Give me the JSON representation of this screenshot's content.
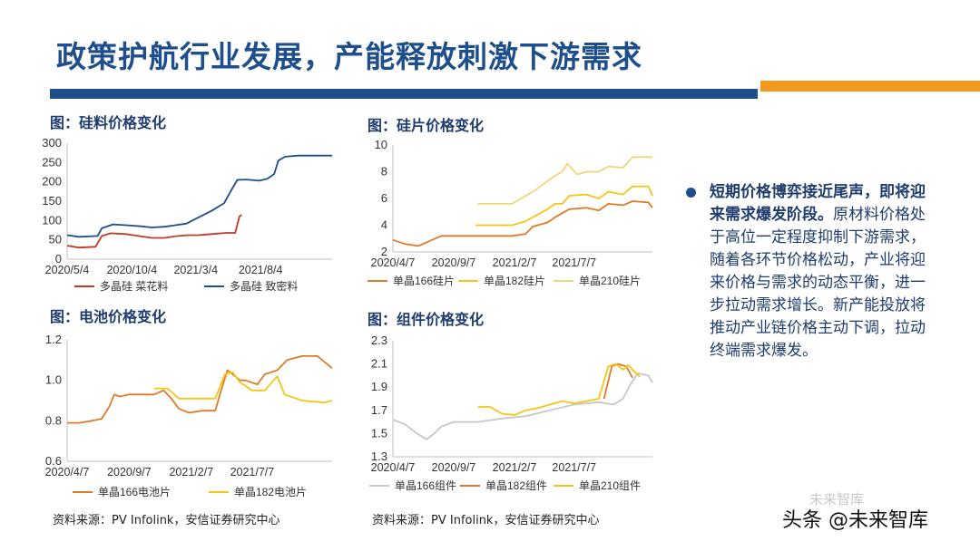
{
  "title": "政策护航行业发展，产能释放刺激下游需求",
  "colors": {
    "brand_blue": "#1f4e8c",
    "accent_orange": "#f39a1e"
  },
  "charts": [
    {
      "title": "图：硅料价格变化",
      "source": "资料来源：PV Infolink，安信证券研究中心"
    },
    {
      "title": "图：硅片价格变化",
      "source": ""
    },
    {
      "title": "图：电池价格变化",
      "source": "资料来源：PV Infolink，安信证券研究中心"
    },
    {
      "title": "图：组件价格变化",
      "source": "资料来源：PV Infolink，安信证券研究中心"
    }
  ],
  "bullet": {
    "bold": "短期价格博弈接近尾声，即将迎来需求爆发阶段。",
    "text": "原材料价格处于高位一定程度抑制下游需求，随着各环节价格松动，产业将迎来价格与需求的动态平衡，进一步拉动需求增长。新产能投放将推动产业链价格主动下调，拉动终端需求爆发。"
  },
  "watermark": {
    "main": "头条 @未来智库",
    "faint": "未来智库"
  },
  "chart_data": [
    {
      "type": "line",
      "ylim": [
        0,
        300
      ],
      "yticks": [
        0,
        50,
        100,
        150,
        200,
        250,
        300
      ],
      "xrange": [
        "2020-05-04",
        "2022-01-20"
      ],
      "xticks": [
        "2020/5/4",
        "2020/10/4",
        "2021/3/4",
        "2021/8/4"
      ],
      "legend_position": "bottom",
      "series": [
        {
          "name": "多晶硅 菜花料",
          "color": "#c0392b",
          "points": [
            [
              "2020-05-04",
              35
            ],
            [
              "2020-06-01",
              30
            ],
            [
              "2020-07-10",
              32
            ],
            [
              "2020-07-25",
              60
            ],
            [
              "2020-08-15",
              67
            ],
            [
              "2020-09-20",
              65
            ],
            [
              "2020-10-20",
              60
            ],
            [
              "2020-11-20",
              55
            ],
            [
              "2020-12-20",
              55
            ],
            [
              "2021-01-20",
              60
            ],
            [
              "2021-02-15",
              62
            ],
            [
              "2021-03-10",
              62
            ],
            [
              "2021-04-10",
              65
            ],
            [
              "2021-05-15",
              68
            ],
            [
              "2021-06-05",
              68
            ],
            [
              "2021-06-15",
              110
            ],
            [
              "2021-06-20",
              115
            ]
          ]
        },
        {
          "name": "多晶硅 致密料",
          "color": "#1f4e8c",
          "points": [
            [
              "2020-05-04",
              62
            ],
            [
              "2020-06-01",
              58
            ],
            [
              "2020-07-15",
              60
            ],
            [
              "2020-07-25",
              80
            ],
            [
              "2020-08-20",
              90
            ],
            [
              "2020-09-20",
              88
            ],
            [
              "2020-10-25",
              85
            ],
            [
              "2020-11-20",
              82
            ],
            [
              "2020-12-20",
              84
            ],
            [
              "2021-01-15",
              88
            ],
            [
              "2021-02-10",
              92
            ],
            [
              "2021-03-10",
              108
            ],
            [
              "2021-04-10",
              125
            ],
            [
              "2021-05-10",
              145
            ],
            [
              "2021-05-25",
              175
            ],
            [
              "2021-06-10",
              205
            ],
            [
              "2021-07-01",
              206
            ],
            [
              "2021-08-01",
              203
            ],
            [
              "2021-08-20",
              208
            ],
            [
              "2021-09-05",
              220
            ],
            [
              "2021-09-15",
              255
            ],
            [
              "2021-10-01",
              265
            ],
            [
              "2021-11-01",
              268
            ],
            [
              "2022-01-20",
              268
            ]
          ]
        }
      ]
    },
    {
      "type": "line",
      "ylim": [
        2,
        10
      ],
      "yticks": [
        2,
        4,
        6,
        8,
        10
      ],
      "xrange": [
        "2020-04-07",
        "2022-01-20"
      ],
      "xticks": [
        "2020/4/7",
        "2020/9/7",
        "2021/2/7",
        "2021/7/7"
      ],
      "legend_position": "bottom",
      "series": [
        {
          "name": "单晶166硅片",
          "color": "#e07a27",
          "points": [
            [
              "2020-04-07",
              2.9
            ],
            [
              "2020-05-07",
              2.6
            ],
            [
              "2020-06-10",
              2.45
            ],
            [
              "2020-07-15",
              2.9
            ],
            [
              "2020-08-07",
              3.2
            ],
            [
              "2020-11-07",
              3.2
            ],
            [
              "2021-02-01",
              3.2
            ],
            [
              "2021-03-07",
              3.35
            ],
            [
              "2021-03-25",
              3.9
            ],
            [
              "2021-05-01",
              4.2
            ],
            [
              "2021-05-20",
              4.6
            ],
            [
              "2021-06-07",
              4.9
            ],
            [
              "2021-06-25",
              5.2
            ],
            [
              "2021-08-07",
              5.3
            ],
            [
              "2021-09-07",
              5.1
            ],
            [
              "2021-10-01",
              5.6
            ],
            [
              "2021-11-07",
              5.5
            ],
            [
              "2021-12-01",
              5.8
            ],
            [
              "2022-01-10",
              5.7
            ],
            [
              "2022-01-20",
              5.3
            ]
          ]
        },
        {
          "name": "单晶182硅片",
          "color": "#f5c518",
          "points": [
            [
              "2020-11-01",
              4.0
            ],
            [
              "2021-02-01",
              4.0
            ],
            [
              "2021-03-07",
              4.3
            ],
            [
              "2021-03-25",
              4.6
            ],
            [
              "2021-05-01",
              5.2
            ],
            [
              "2021-05-20",
              5.6
            ],
            [
              "2021-06-07",
              5.6
            ],
            [
              "2021-06-25",
              6.2
            ],
            [
              "2021-08-07",
              6.3
            ],
            [
              "2021-09-07",
              6.0
            ],
            [
              "2021-10-01",
              6.5
            ],
            [
              "2021-11-07",
              6.3
            ],
            [
              "2021-12-01",
              6.9
            ],
            [
              "2022-01-10",
              6.9
            ],
            [
              "2022-01-20",
              6.2
            ]
          ]
        },
        {
          "name": "单晶210硅片",
          "color": "#f0d57a",
          "points": [
            [
              "2020-11-07",
              5.6
            ],
            [
              "2021-02-01",
              5.6
            ],
            [
              "2021-03-07",
              6.2
            ],
            [
              "2021-03-25",
              6.5
            ],
            [
              "2021-05-01",
              7.3
            ],
            [
              "2021-05-20",
              7.7
            ],
            [
              "2021-06-07",
              8.0
            ],
            [
              "2021-06-20",
              8.6
            ],
            [
              "2021-07-15",
              7.8
            ],
            [
              "2021-08-07",
              8.0
            ],
            [
              "2021-09-07",
              8.0
            ],
            [
              "2021-10-01",
              8.4
            ],
            [
              "2021-11-07",
              8.3
            ],
            [
              "2021-12-01",
              9.1
            ],
            [
              "2022-01-20",
              9.1
            ]
          ]
        }
      ]
    },
    {
      "type": "line",
      "ylim": [
        0.6,
        1.2
      ],
      "yticks": [
        0.6,
        0.8,
        1.0,
        1.2
      ],
      "xrange": [
        "2020-04-07",
        "2022-01-20"
      ],
      "xticks": [
        "2020/4/7",
        "2020/9/7",
        "2021/2/7",
        "2021/7/7"
      ],
      "legend_position": "bottom",
      "series": [
        {
          "name": "单晶166电池片",
          "color": "#e07a27",
          "points": [
            [
              "2020-04-07",
              0.79
            ],
            [
              "2020-05-07",
              0.79
            ],
            [
              "2020-06-07",
              0.8
            ],
            [
              "2020-07-01",
              0.81
            ],
            [
              "2020-07-20",
              0.87
            ],
            [
              "2020-08-01",
              0.93
            ],
            [
              "2020-08-15",
              0.92
            ],
            [
              "2020-09-07",
              0.93
            ],
            [
              "2020-11-07",
              0.93
            ],
            [
              "2020-12-01",
              0.95
            ],
            [
              "2020-12-20",
              0.91
            ],
            [
              "2021-01-07",
              0.86
            ],
            [
              "2021-02-01",
              0.84
            ],
            [
              "2021-03-07",
              0.85
            ],
            [
              "2021-04-07",
              0.85
            ],
            [
              "2021-04-20",
              0.94
            ],
            [
              "2021-05-07",
              1.05
            ],
            [
              "2021-05-20",
              1.03
            ],
            [
              "2021-06-07",
              1.0
            ],
            [
              "2021-06-20",
              1.0
            ],
            [
              "2021-07-20",
              0.98
            ],
            [
              "2021-08-07",
              1.03
            ],
            [
              "2021-09-07",
              1.05
            ],
            [
              "2021-10-01",
              1.1
            ],
            [
              "2021-11-07",
              1.12
            ],
            [
              "2021-12-15",
              1.12
            ],
            [
              "2022-01-20",
              1.06
            ]
          ]
        },
        {
          "name": "单晶182电池片",
          "color": "#f5c518",
          "points": [
            [
              "2020-11-07",
              0.96
            ],
            [
              "2020-12-10",
              0.96
            ],
            [
              "2021-01-07",
              0.91
            ],
            [
              "2021-02-07",
              0.91
            ],
            [
              "2021-04-07",
              0.91
            ],
            [
              "2021-05-01",
              1.03
            ],
            [
              "2021-05-20",
              1.04
            ],
            [
              "2021-06-07",
              0.99
            ],
            [
              "2021-07-07",
              0.95
            ],
            [
              "2021-08-07",
              0.95
            ],
            [
              "2021-09-07",
              1.02
            ],
            [
              "2021-09-25",
              0.93
            ],
            [
              "2021-11-07",
              0.9
            ],
            [
              "2022-01-01",
              0.89
            ],
            [
              "2022-01-20",
              0.9
            ]
          ]
        }
      ]
    },
    {
      "type": "line",
      "ylim": [
        1.3,
        2.3
      ],
      "yticks": [
        1.3,
        1.5,
        1.7,
        1.9,
        2.1,
        2.3
      ],
      "xrange": [
        "2020-04-07",
        "2022-01-20"
      ],
      "xticks": [
        "2020/4/7",
        "2020/9/7",
        "2021/2/7",
        "2021/7/7"
      ],
      "legend_position": "bottom",
      "series": [
        {
          "name": "单晶166组件",
          "color": "#c8c8c8",
          "points": [
            [
              "2020-04-07",
              1.62
            ],
            [
              "2020-05-07",
              1.58
            ],
            [
              "2020-06-07",
              1.5
            ],
            [
              "2020-07-01",
              1.45
            ],
            [
              "2020-07-20",
              1.5
            ],
            [
              "2020-08-07",
              1.56
            ],
            [
              "2020-09-07",
              1.6
            ],
            [
              "2020-11-07",
              1.6
            ],
            [
              "2021-01-07",
              1.63
            ],
            [
              "2021-03-07",
              1.65
            ],
            [
              "2021-05-07",
              1.7
            ],
            [
              "2021-07-07",
              1.75
            ],
            [
              "2021-09-07",
              1.77
            ],
            [
              "2021-10-15",
              1.75
            ],
            [
              "2021-11-07",
              1.8
            ],
            [
              "2021-11-25",
              1.92
            ],
            [
              "2021-12-15",
              2.02
            ],
            [
              "2022-01-10",
              2.0
            ],
            [
              "2022-01-20",
              1.94
            ]
          ]
        },
        {
          "name": "单晶182组件",
          "color": "#e07a27",
          "points": [
            [
              "2021-09-20",
              1.8
            ],
            [
              "2021-10-10",
              2.08
            ],
            [
              "2021-10-25",
              2.1
            ],
            [
              "2021-11-15",
              2.08
            ],
            [
              "2021-12-01",
              1.98
            ]
          ]
        },
        {
          "name": "单晶210组件",
          "color": "#f5c518",
          "points": [
            [
              "2020-11-07",
              1.73
            ],
            [
              "2020-12-07",
              1.73
            ],
            [
              "2021-01-07",
              1.67
            ],
            [
              "2021-02-07",
              1.66
            ],
            [
              "2021-03-07",
              1.7
            ],
            [
              "2021-04-07",
              1.72
            ],
            [
              "2021-05-07",
              1.75
            ],
            [
              "2021-06-07",
              1.78
            ],
            [
              "2021-07-07",
              1.76
            ],
            [
              "2021-08-07",
              1.78
            ],
            [
              "2021-09-07",
              1.8
            ],
            [
              "2021-10-01",
              2.08
            ],
            [
              "2021-10-20",
              2.1
            ],
            [
              "2021-11-07",
              2.05
            ],
            [
              "2021-11-20",
              2.09
            ],
            [
              "2021-12-07",
              2.03
            ],
            [
              "2021-12-20",
              1.99
            ]
          ]
        }
      ]
    }
  ]
}
